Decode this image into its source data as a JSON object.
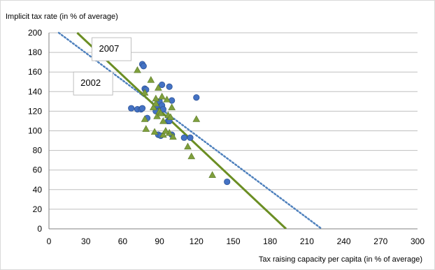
{
  "chart_data": {
    "type": "scatter",
    "ylabel": "Implicit tax rate (in % of average)",
    "xlabel": "Tax raising capacity per capita  (in % of average)",
    "xlim": [
      0,
      300
    ],
    "ylim": [
      0,
      200
    ],
    "xticks": [
      0,
      30,
      60,
      90,
      120,
      150,
      180,
      210,
      240,
      270,
      300
    ],
    "yticks": [
      0,
      20,
      40,
      60,
      80,
      100,
      120,
      140,
      160,
      180,
      200
    ],
    "grid": "horizontal",
    "colors": {
      "series_2002": "#4472c4",
      "series_2007": "#7f9f3c",
      "trend_2002": "#4f81bd",
      "trend_2007": "#6b8e23",
      "grid": "#bfbfbf"
    },
    "series": [
      {
        "key": "2002",
        "marker": "circle",
        "points": [
          [
            67,
            123
          ],
          [
            72,
            122
          ],
          [
            75,
            122
          ],
          [
            76,
            123
          ],
          [
            76,
            168
          ],
          [
            77,
            166
          ],
          [
            78,
            143
          ],
          [
            79,
            142
          ],
          [
            80,
            113
          ],
          [
            88,
            126
          ],
          [
            89,
            96
          ],
          [
            90,
            130
          ],
          [
            91,
            95
          ],
          [
            92,
            147
          ],
          [
            92,
            126
          ],
          [
            93,
            122
          ],
          [
            97,
            110
          ],
          [
            98,
            145
          ],
          [
            98,
            110
          ],
          [
            100,
            131
          ],
          [
            110,
            93
          ],
          [
            115,
            93
          ],
          [
            120,
            134
          ],
          [
            145,
            48
          ],
          [
            100,
            96
          ],
          [
            87,
            120
          ]
        ]
      },
      {
        "key": "2007",
        "marker": "triangle",
        "points": [
          [
            72,
            162
          ],
          [
            78,
            139
          ],
          [
            78,
            112
          ],
          [
            79,
            102
          ],
          [
            83,
            152
          ],
          [
            85,
            124
          ],
          [
            86,
            99
          ],
          [
            87,
            128
          ],
          [
            88,
            115
          ],
          [
            89,
            144
          ],
          [
            90,
            120
          ],
          [
            91,
            118
          ],
          [
            92,
            135
          ],
          [
            93,
            110
          ],
          [
            93,
            96
          ],
          [
            96,
            132
          ],
          [
            97,
            116
          ],
          [
            98,
            98
          ],
          [
            99,
            114
          ],
          [
            100,
            124
          ],
          [
            101,
            94
          ],
          [
            113,
            84
          ],
          [
            116,
            74
          ],
          [
            120,
            112
          ],
          [
            133,
            55
          ],
          [
            87,
            133
          ],
          [
            95,
            100
          ]
        ]
      }
    ],
    "trendlines": [
      {
        "key": "2002",
        "style": "dotted",
        "x": [
          8,
          222
        ],
        "y": [
          200,
          0
        ]
      },
      {
        "key": "2007",
        "style": "solid",
        "x": [
          23,
          193
        ],
        "y": [
          200,
          0
        ]
      }
    ],
    "annotations": [
      {
        "text": "2007",
        "x_data": 35,
        "y_data": 195
      },
      {
        "text": "2002",
        "x_data": 20,
        "y_data": 160
      }
    ]
  }
}
